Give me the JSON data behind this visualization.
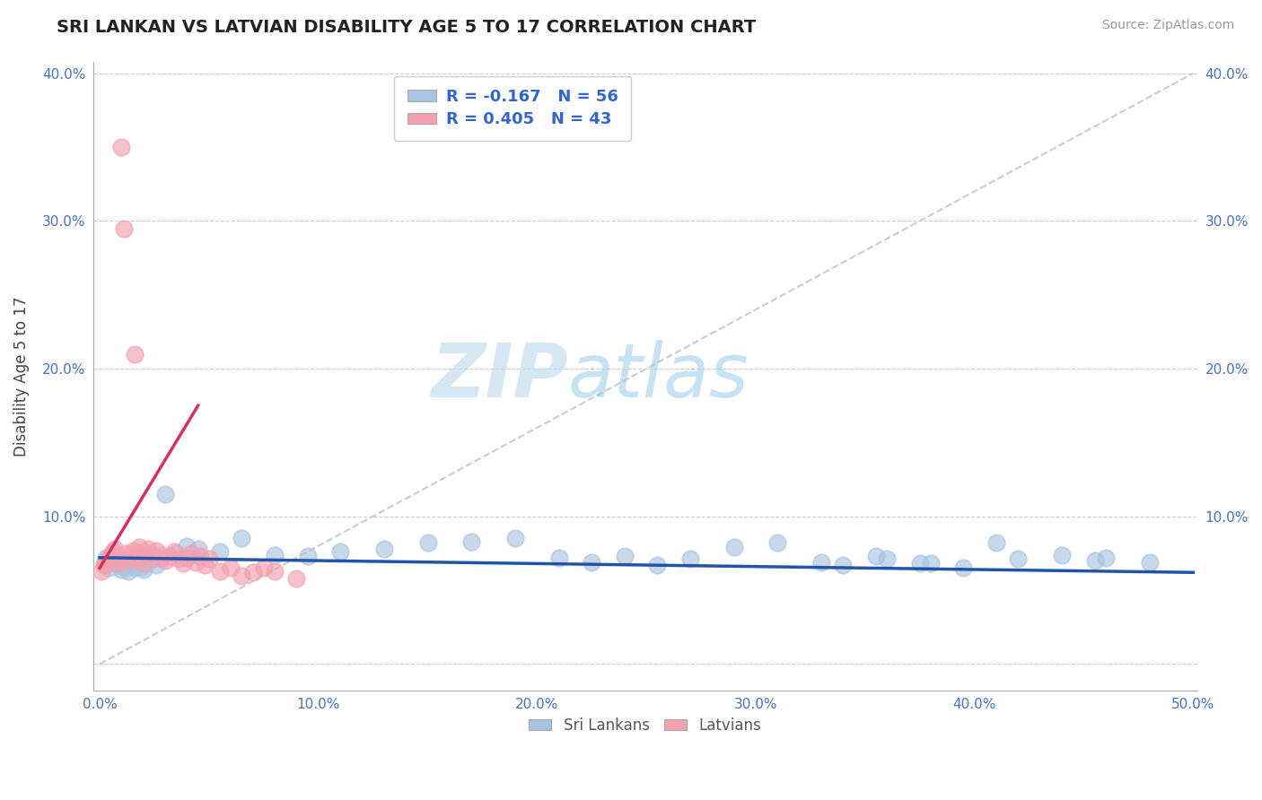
{
  "title": "SRI LANKAN VS LATVIAN DISABILITY AGE 5 TO 17 CORRELATION CHART",
  "source": "Source: ZipAtlas.com",
  "ylabel": "Disability Age 5 to 17",
  "xlim": [
    -0.003,
    0.502
  ],
  "ylim": [
    -0.018,
    0.408
  ],
  "xticks": [
    0.0,
    0.1,
    0.2,
    0.3,
    0.4,
    0.5
  ],
  "yticks": [
    0.0,
    0.1,
    0.2,
    0.3,
    0.4
  ],
  "xticklabels": [
    "0.0%",
    "10.0%",
    "20.0%",
    "30.0%",
    "40.0%",
    "50.0%"
  ],
  "yticklabels_left": [
    "",
    "10.0%",
    "20.0%",
    "30.0%",
    "40.0%"
  ],
  "yticklabels_right": [
    "",
    "10.0%",
    "20.0%",
    "30.0%",
    "40.0%"
  ],
  "sri_lankan_color": "#a8c4e0",
  "latvian_color": "#f4a0b0",
  "sri_lankan_line_color": "#2255aa",
  "latvian_line_color": "#d63060",
  "R_sri": -0.167,
  "N_sri": 56,
  "R_lat": 0.405,
  "N_lat": 43,
  "watermark_zip": "ZIP",
  "watermark_atlas": "atlas",
  "sri_lankans_x": [
    0.002,
    0.003,
    0.004,
    0.005,
    0.006,
    0.007,
    0.008,
    0.009,
    0.01,
    0.011,
    0.012,
    0.013,
    0.014,
    0.015,
    0.016,
    0.017,
    0.018,
    0.019,
    0.02,
    0.022,
    0.024,
    0.026,
    0.028,
    0.03,
    0.035,
    0.04,
    0.045,
    0.055,
    0.065,
    0.08,
    0.095,
    0.11,
    0.13,
    0.15,
    0.17,
    0.19,
    0.21,
    0.225,
    0.24,
    0.255,
    0.27,
    0.29,
    0.31,
    0.33,
    0.355,
    0.375,
    0.395,
    0.42,
    0.44,
    0.46,
    0.34,
    0.36,
    0.38,
    0.41,
    0.455,
    0.48
  ],
  "sri_lankans_y": [
    0.068,
    0.072,
    0.065,
    0.071,
    0.069,
    0.073,
    0.067,
    0.07,
    0.064,
    0.066,
    0.069,
    0.063,
    0.067,
    0.071,
    0.065,
    0.068,
    0.072,
    0.066,
    0.064,
    0.069,
    0.073,
    0.067,
    0.071,
    0.115,
    0.075,
    0.08,
    0.078,
    0.076,
    0.085,
    0.074,
    0.073,
    0.076,
    0.078,
    0.082,
    0.083,
    0.085,
    0.072,
    0.069,
    0.073,
    0.067,
    0.071,
    0.079,
    0.082,
    0.069,
    0.073,
    0.068,
    0.065,
    0.071,
    0.074,
    0.072,
    0.067,
    0.071,
    0.068,
    0.082,
    0.07,
    0.069
  ],
  "latvians_x": [
    0.001,
    0.002,
    0.003,
    0.004,
    0.005,
    0.006,
    0.007,
    0.008,
    0.009,
    0.01,
    0.011,
    0.012,
    0.013,
    0.014,
    0.015,
    0.016,
    0.017,
    0.018,
    0.019,
    0.02,
    0.021,
    0.022,
    0.024,
    0.026,
    0.028,
    0.03,
    0.032,
    0.034,
    0.036,
    0.038,
    0.04,
    0.042,
    0.044,
    0.046,
    0.048,
    0.05,
    0.055,
    0.06,
    0.065,
    0.07,
    0.075,
    0.08,
    0.09
  ],
  "latvians_y": [
    0.063,
    0.067,
    0.069,
    0.072,
    0.074,
    0.076,
    0.078,
    0.068,
    0.072,
    0.35,
    0.295,
    0.075,
    0.07,
    0.073,
    0.077,
    0.21,
    0.076,
    0.079,
    0.072,
    0.068,
    0.075,
    0.078,
    0.072,
    0.077,
    0.074,
    0.07,
    0.073,
    0.076,
    0.071,
    0.068,
    0.072,
    0.075,
    0.069,
    0.073,
    0.067,
    0.071,
    0.063,
    0.065,
    0.06,
    0.062,
    0.065,
    0.063,
    0.058
  ],
  "sri_line_x": [
    0.0,
    0.5
  ],
  "sri_line_y": [
    0.072,
    0.062
  ],
  "lat_line_x": [
    0.0,
    0.045
  ],
  "lat_line_y": [
    0.065,
    0.175
  ],
  "ref_line_x": [
    0.0,
    0.5
  ],
  "ref_line_y": [
    0.0,
    0.4
  ]
}
